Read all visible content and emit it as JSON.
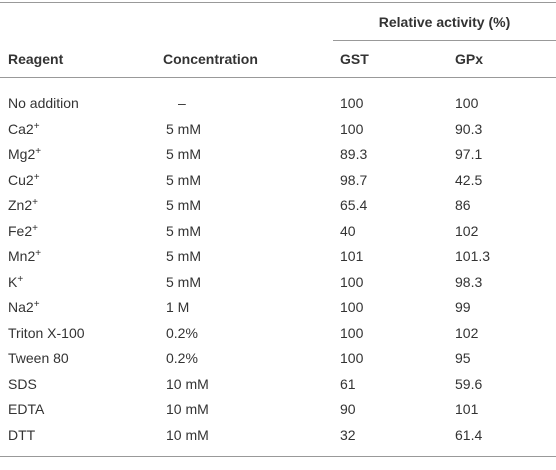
{
  "table": {
    "group_header": "Relative activity (%)",
    "columns": [
      "Reagent",
      "Concentration",
      "GST",
      "GPx"
    ],
    "rows": [
      [
        {
          "base": "No addition"
        },
        "–",
        "100",
        "100"
      ],
      [
        {
          "base": "Ca2",
          "sup": "+"
        },
        "5 mM",
        "100",
        "90.3"
      ],
      [
        {
          "base": "Mg2",
          "sup": "+"
        },
        "5 mM",
        "89.3",
        "97.1"
      ],
      [
        {
          "base": "Cu2",
          "sup": "+"
        },
        "5 mM",
        "98.7",
        "42.5"
      ],
      [
        {
          "base": "Zn2",
          "sup": "+"
        },
        "5 mM",
        "65.4",
        "86"
      ],
      [
        {
          "base": "Fe2",
          "sup": "+"
        },
        "5 mM",
        "40",
        "102"
      ],
      [
        {
          "base": "Mn2",
          "sup": "+"
        },
        "5 mM",
        "101",
        "101.3"
      ],
      [
        {
          "base": "K",
          "sup": "+"
        },
        "5 mM",
        "100",
        "98.3"
      ],
      [
        {
          "base": "Na2",
          "sup": "+"
        },
        "1 M",
        "100",
        "99"
      ],
      [
        {
          "base": "Triton X-100"
        },
        "0.2%",
        "100",
        "102"
      ],
      [
        {
          "base": "Tween 80"
        },
        "0.2%",
        "100",
        "95"
      ],
      [
        {
          "base": "SDS"
        },
        "10 mM",
        "61",
        "59.6"
      ],
      [
        {
          "base": "EDTA"
        },
        "10 mM",
        "90",
        "101"
      ],
      [
        {
          "base": "DTT"
        },
        "10 mM",
        "32",
        "61.4"
      ]
    ]
  }
}
